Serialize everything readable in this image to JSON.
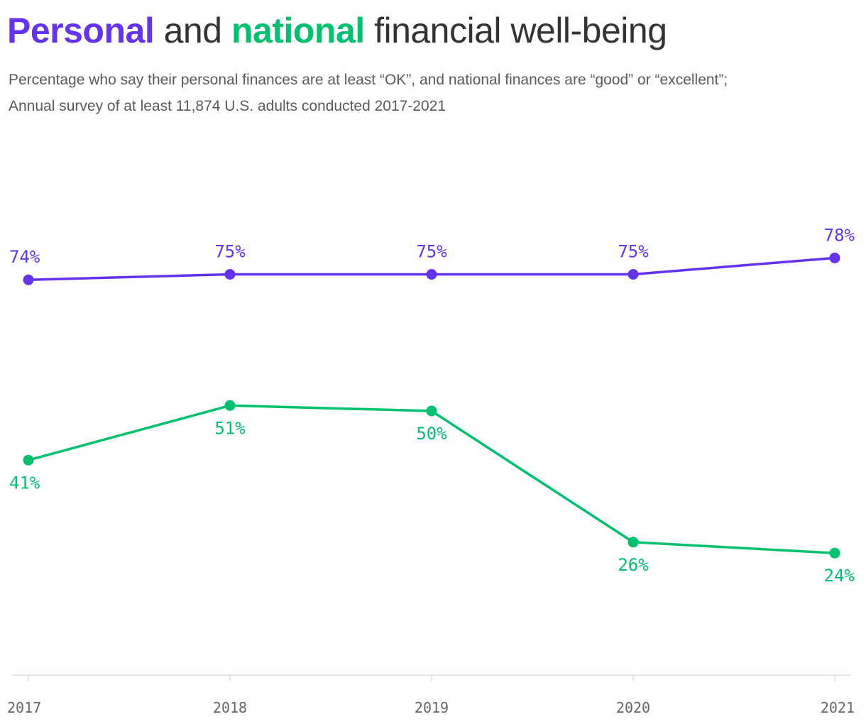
{
  "title": {
    "personal": "Personal",
    "and": "and",
    "national": "national",
    "rest": "financial well-being"
  },
  "subtitle": {
    "line1": "Percentage who say their personal finances are at least “OK”, and national finances are “good” or “excellent”;",
    "line2": "Annual survey of at least 11,874 U.S. adults conducted 2017-2021"
  },
  "colors": {
    "personal": "#6533ee",
    "national": "#00c16e",
    "axis": "#dddddd",
    "tick_text": "#666666"
  },
  "chart_data": {
    "type": "line",
    "title": "Personal and national financial well-being",
    "xlabel": "",
    "ylabel": "",
    "x": [
      "2017",
      "2018",
      "2019",
      "2020",
      "2021"
    ],
    "ylim": [
      10,
      90
    ],
    "grid": false,
    "legend": "none",
    "series": [
      {
        "name": "Personal",
        "color": "#6533ee",
        "values": [
          74,
          75,
          75,
          75,
          78
        ],
        "labels": [
          "74%",
          "75%",
          "75%",
          "75%",
          "78%"
        ],
        "label_position": "above"
      },
      {
        "name": "national",
        "color": "#00c16e",
        "values": [
          41,
          51,
          50,
          26,
          24
        ],
        "labels": [
          "41%",
          "51%",
          "50%",
          "26%",
          "24%"
        ],
        "label_position": "below"
      }
    ]
  }
}
